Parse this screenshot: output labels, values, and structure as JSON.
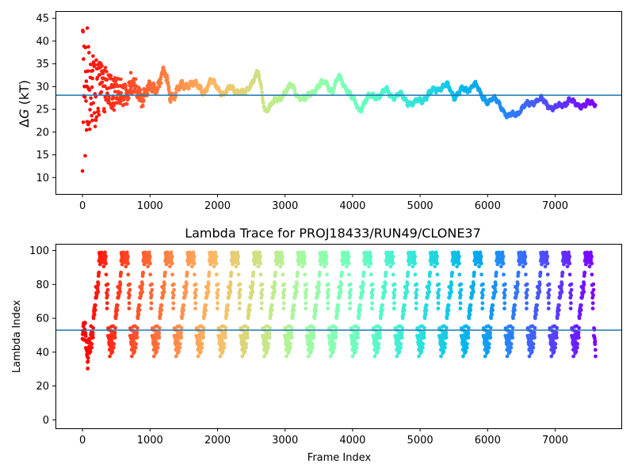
{
  "chart_data": [
    {
      "type": "scatter",
      "title": "",
      "xlabel": "",
      "ylabel": "ΔG (kT)",
      "ylabel_parts": {
        "delta": "Δ",
        "var": "G",
        "unit": " (kT)"
      },
      "xlim": [
        -400,
        7980
      ],
      "ylim": [
        6.4,
        46.6
      ],
      "xticks": [
        0,
        1000,
        2000,
        3000,
        4000,
        5000,
        6000,
        7000
      ],
      "xtick_labels": [
        "0",
        "1000",
        "2000",
        "3000",
        "4000",
        "5000",
        "6000",
        "7000"
      ],
      "yticks": [
        10,
        15,
        20,
        25,
        30,
        35,
        40,
        45
      ],
      "ytick_labels": [
        "10",
        "15",
        "20",
        "25",
        "30",
        "35",
        "40",
        "45"
      ],
      "hline": {
        "y": 28.1,
        "color": "#1f77b4"
      },
      "colormap": "rainbow (red at frame 0 to violet at final frame)",
      "x_count": 7600,
      "grid": false,
      "series_profile": {
        "x": [
          0,
          50,
          100,
          150,
          200,
          300,
          400,
          500,
          600,
          700,
          800,
          900,
          1000,
          1100,
          1200,
          1250,
          1300,
          1400,
          1500,
          1600,
          1700,
          1800,
          1900,
          2000,
          2100,
          2200,
          2300,
          2400,
          2500,
          2600,
          2700,
          2800,
          2900,
          3000,
          3100,
          3200,
          3300,
          3400,
          3500,
          3600,
          3700,
          3800,
          3900,
          4000,
          4100,
          4200,
          4300,
          4400,
          4500,
          4600,
          4700,
          4800,
          4900,
          5000,
          5100,
          5200,
          5300,
          5400,
          5500,
          5600,
          5700,
          5800,
          5900,
          6000,
          6100,
          6200,
          6300,
          6400,
          6500,
          6600,
          6700,
          6800,
          6900,
          7000,
          7100,
          7200,
          7300,
          7400,
          7500,
          7600
        ],
        "y": [
          28,
          29,
          30,
          29,
          30,
          29,
          30,
          28,
          29,
          30,
          29,
          28,
          29,
          30,
          33,
          31,
          28,
          29,
          30,
          31,
          30,
          29,
          31,
          30,
          28,
          30,
          29,
          28,
          31,
          33,
          25,
          26,
          27,
          29,
          30,
          28,
          27,
          29,
          30,
          31,
          29,
          32,
          30,
          27,
          25,
          27,
          28,
          28,
          29,
          28,
          28,
          27,
          26,
          27,
          28,
          29,
          30,
          30,
          28,
          29,
          29,
          31,
          28,
          27,
          27,
          26,
          23,
          24,
          25,
          26,
          27,
          27,
          26,
          25,
          26,
          27,
          26,
          26,
          26,
          26.5
        ]
      },
      "spread_by_frame": {
        "x": [
          0,
          100,
          200,
          400,
          700,
          1000,
          1500,
          7600
        ],
        "amplitude": [
          17,
          11,
          7,
          4,
          2.5,
          1,
          0.4,
          0.3
        ]
      }
    },
    {
      "type": "scatter",
      "title": "Lambda Trace for PROJ18433/RUN49/CLONE37",
      "xlabel": "Frame Index",
      "ylabel": "Lambda Index",
      "xlim": [
        -400,
        7980
      ],
      "ylim": [
        -5,
        104
      ],
      "xticks": [
        0,
        1000,
        2000,
        3000,
        4000,
        5000,
        6000,
        7000
      ],
      "xtick_labels": [
        "0",
        "1000",
        "2000",
        "3000",
        "4000",
        "5000",
        "6000",
        "7000"
      ],
      "yticks": [
        0,
        20,
        40,
        60,
        80,
        100
      ],
      "ytick_labels": [
        "0",
        "20",
        "40",
        "60",
        "80",
        "100"
      ],
      "hline": {
        "y": 53,
        "color": "#1f77b4"
      },
      "colormap": "rainbow (red at frame 0 to violet at final frame)",
      "x_count": 7600,
      "y_range": [
        0,
        99
      ],
      "grid": false
    }
  ]
}
